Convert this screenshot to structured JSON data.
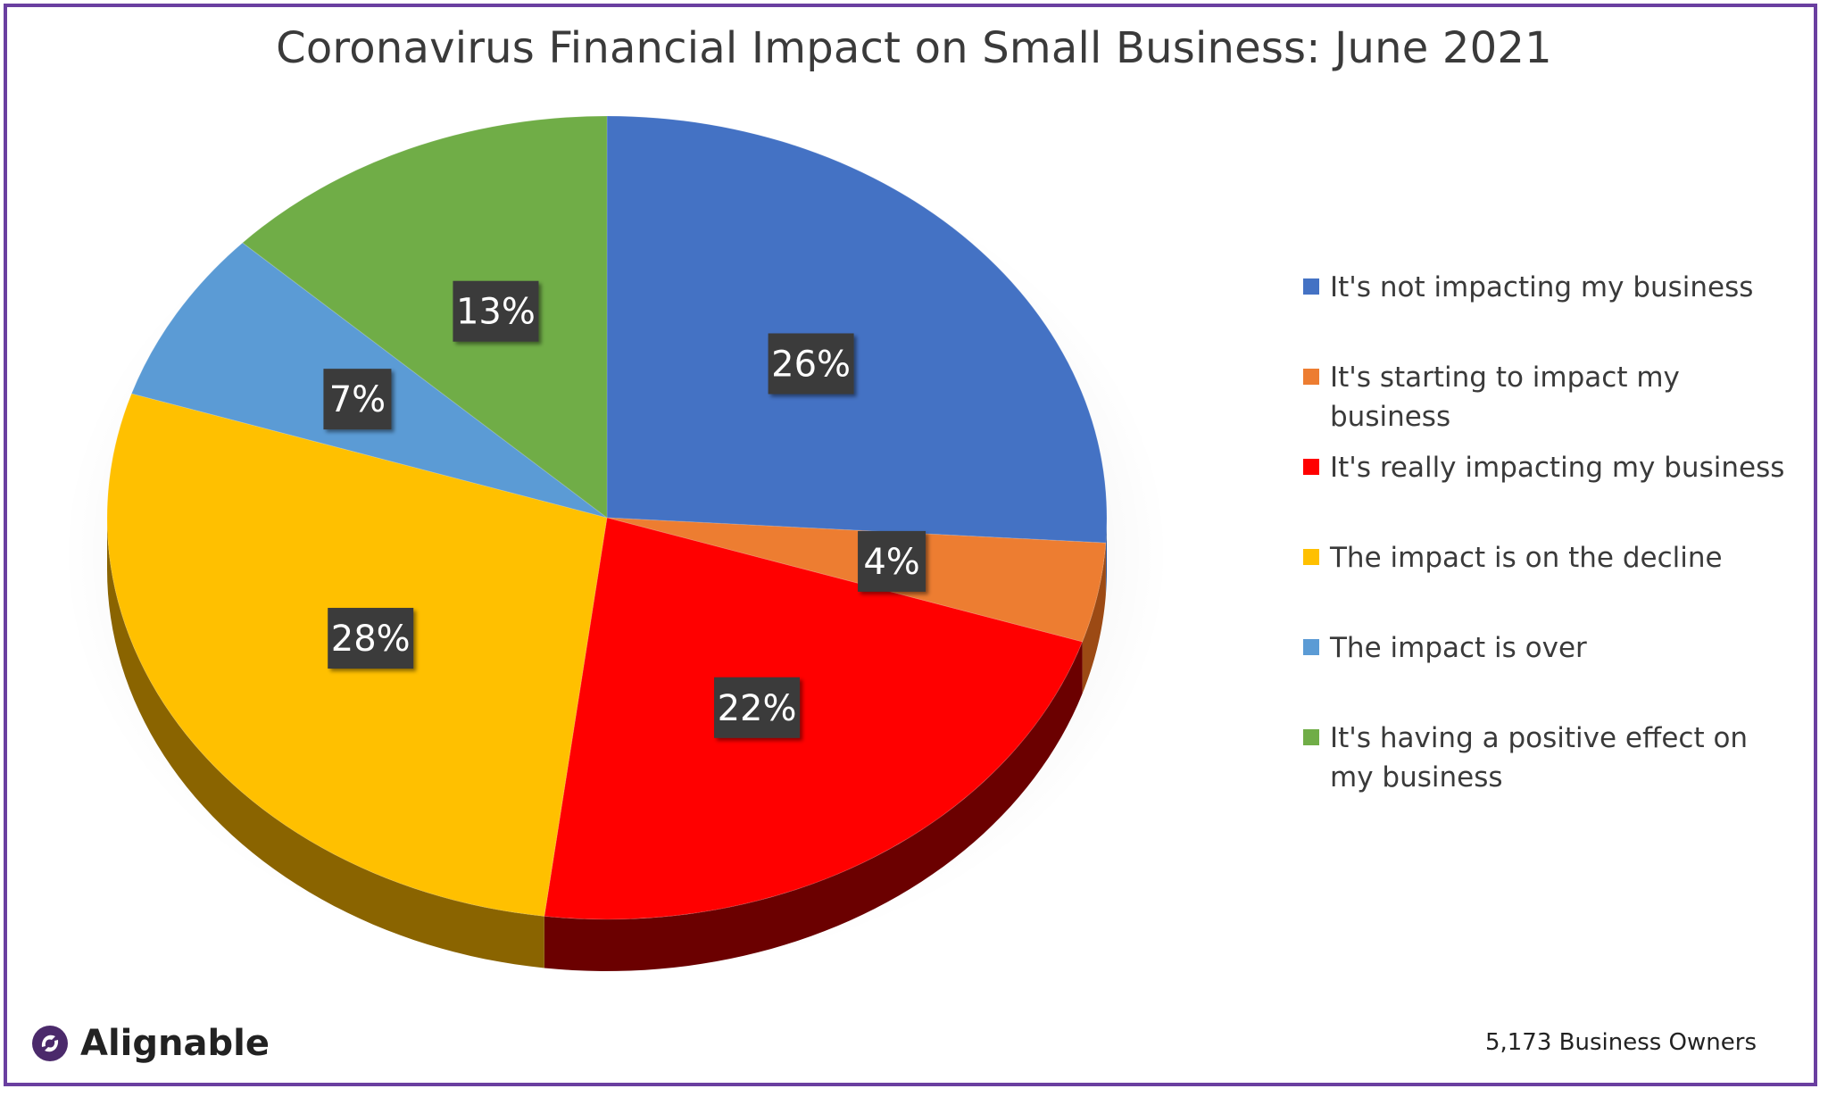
{
  "chart_data": {
    "type": "pie",
    "title": "Coronavirus Financial Impact on Small Business: June 2021",
    "slices": [
      {
        "label": "It's not impacting my business",
        "value": 26,
        "display": "26%",
        "color": "#4472c4",
        "side": "#2f5597"
      },
      {
        "label": "It's starting to impact my business",
        "value": 4,
        "display": "4%",
        "color": "#ed7d31",
        "side": "#9c4a14"
      },
      {
        "label": "It's really impacting my business",
        "value": 22,
        "display": "22%",
        "color": "#ff0000",
        "side": "#6b0000"
      },
      {
        "label": "The impact is on the decline",
        "value": 28,
        "display": "28%",
        "color": "#ffc000",
        "side": "#8a6400"
      },
      {
        "label": "The impact is over",
        "value": 7,
        "display": "7%",
        "color": "#5b9bd5",
        "side": "#2e5f8f"
      },
      {
        "label": "It's having a positive effect on my business",
        "value": 13,
        "display": "13%",
        "color": "#70ad47",
        "side": "#3e6a22"
      }
    ],
    "legend_position": "right",
    "style": "3d-pie"
  },
  "footer": {
    "brand": "Alignable",
    "brand_icon": "alignable-logo-icon",
    "sample_note": "5,173 Business Owners"
  },
  "colors": {
    "frame": "#6a3fa0",
    "label_box": "#3b3b3b",
    "label_text": "#ffffff"
  }
}
